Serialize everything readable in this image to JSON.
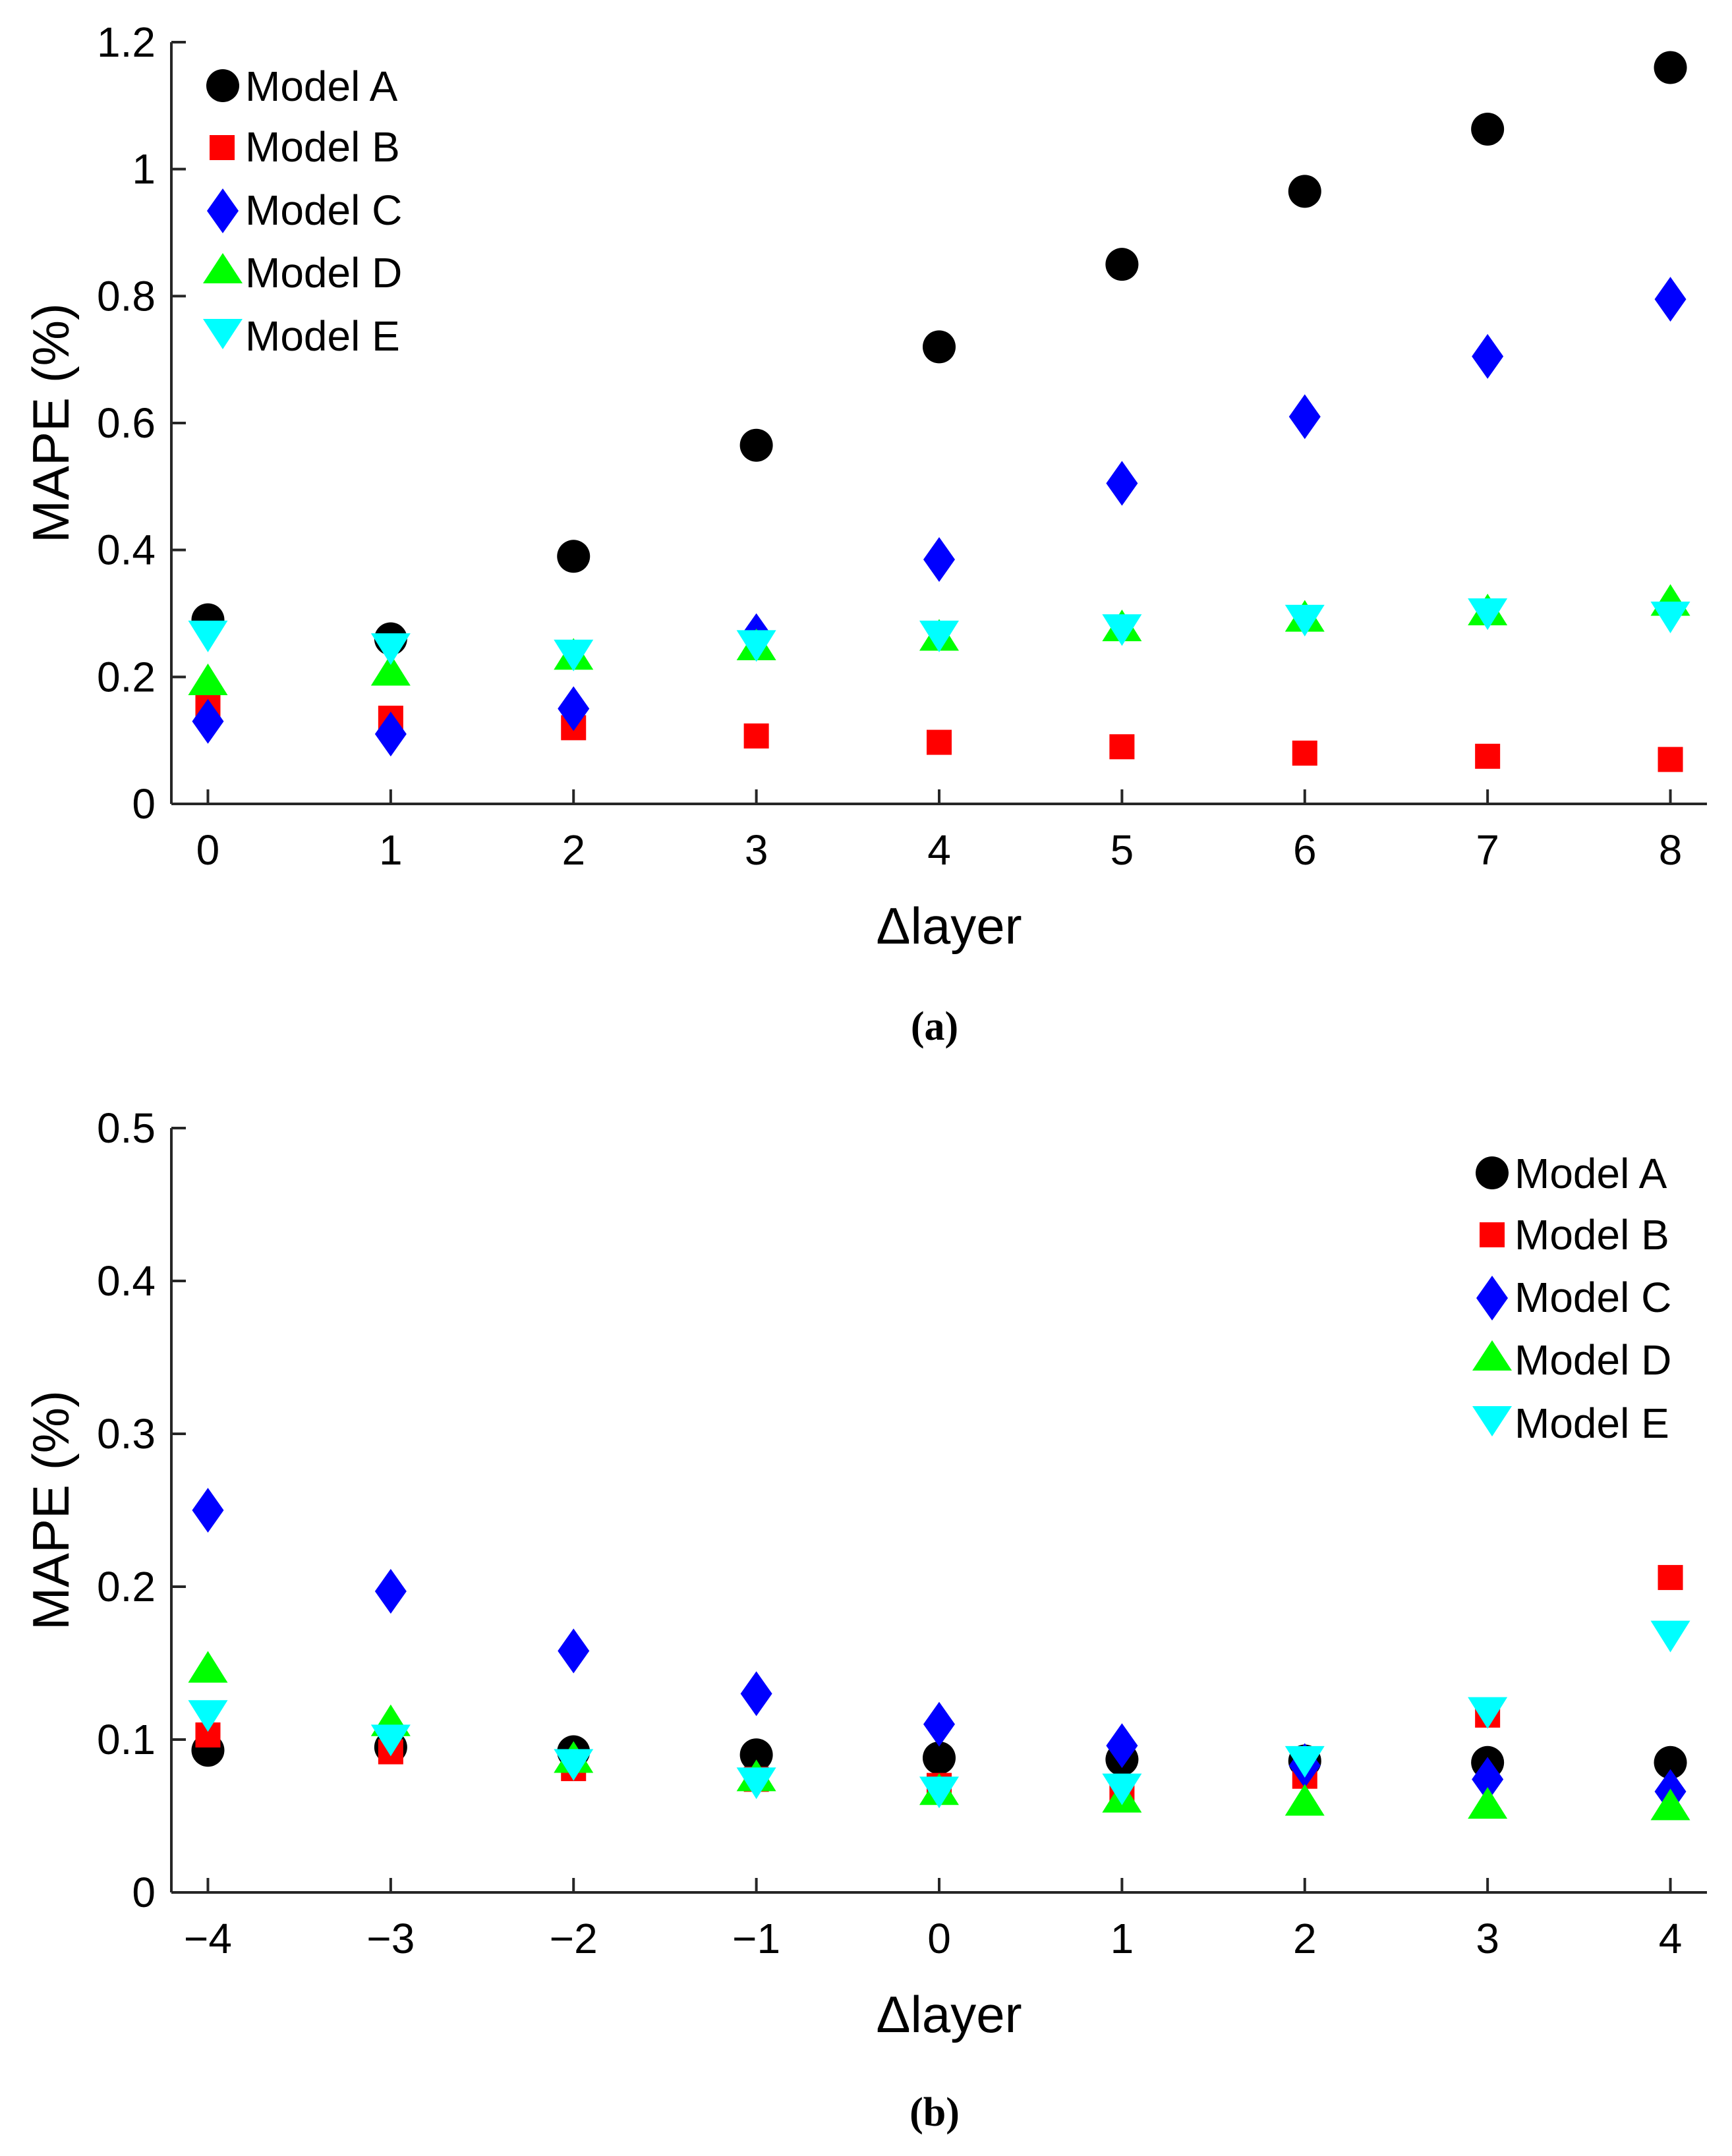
{
  "chart_data": [
    {
      "type": "scatter",
      "panel": "a",
      "caption": "(a)",
      "xlabel": "Δlayer",
      "ylabel": "MAPE (%)",
      "x": [
        0,
        1,
        2,
        3,
        4,
        5,
        6,
        7,
        8
      ],
      "x_tick_labels": [
        "0",
        "1",
        "2",
        "3",
        "4",
        "5",
        "6",
        "7",
        "8"
      ],
      "xlim": [
        -0.2,
        8.2
      ],
      "ylim": [
        0,
        1.2
      ],
      "y_ticks": [
        0,
        0.2,
        0.4,
        0.6,
        0.8,
        1,
        1.2
      ],
      "y_tick_labels": [
        "0",
        "0.2",
        "0.4",
        "0.6",
        "0.8",
        "1",
        "1.2"
      ],
      "legend_position": "top-left",
      "series": [
        {
          "name": "Model A",
          "marker": "circle",
          "color": "#000000",
          "values": [
            0.29,
            0.26,
            0.39,
            0.565,
            0.72,
            0.85,
            0.965,
            1.063,
            1.16
          ]
        },
        {
          "name": "Model B",
          "marker": "square",
          "color": "#ff0000",
          "values": [
            0.155,
            0.135,
            0.12,
            0.107,
            0.097,
            0.09,
            0.08,
            0.075,
            0.07
          ]
        },
        {
          "name": "Model C",
          "marker": "diamond",
          "color": "#0000ff",
          "values": [
            0.13,
            0.11,
            0.15,
            0.265,
            0.385,
            0.505,
            0.61,
            0.705,
            0.795
          ]
        },
        {
          "name": "Model D",
          "marker": "triangle-up",
          "color": "#00ff00",
          "values": [
            0.19,
            0.205,
            0.23,
            0.245,
            0.26,
            0.275,
            0.29,
            0.3,
            0.315
          ]
        },
        {
          "name": "Model E",
          "marker": "triangle-down",
          "color": "#00ffff",
          "values": [
            0.27,
            0.25,
            0.24,
            0.255,
            0.27,
            0.28,
            0.295,
            0.305,
            0.3
          ]
        }
      ]
    },
    {
      "type": "scatter",
      "panel": "b",
      "caption": "(b)",
      "xlabel": "Δlayer",
      "ylabel": "MAPE (%)",
      "x": [
        -4,
        -3,
        -2,
        -1,
        0,
        1,
        2,
        3,
        4
      ],
      "x_tick_labels": [
        "−4",
        "−3",
        "−2",
        "−1",
        "0",
        "1",
        "2",
        "3",
        "4"
      ],
      "xlim": [
        -4.2,
        4.2
      ],
      "ylim": [
        0,
        0.5
      ],
      "y_ticks": [
        0,
        0.1,
        0.2,
        0.3,
        0.4,
        0.5
      ],
      "y_tick_labels": [
        "0",
        "0.1",
        "0.2",
        "0.3",
        "0.4",
        "0.5"
      ],
      "legend_position": "top-right",
      "series": [
        {
          "name": "Model A",
          "marker": "circle",
          "color": "#000000",
          "values": [
            0.093,
            0.095,
            0.092,
            0.09,
            0.088,
            0.087,
            0.086,
            0.085,
            0.085
          ]
        },
        {
          "name": "Model B",
          "marker": "square",
          "color": "#ff0000",
          "values": [
            0.103,
            0.092,
            0.081,
            0.074,
            0.07,
            0.067,
            0.076,
            0.116,
            0.206
          ]
        },
        {
          "name": "Model C",
          "marker": "diamond",
          "color": "#0000ff",
          "values": [
            0.25,
            0.197,
            0.158,
            0.13,
            0.11,
            0.096,
            0.083,
            0.074,
            0.066
          ]
        },
        {
          "name": "Model D",
          "marker": "triangle-up",
          "color": "#00ff00",
          "values": [
            0.145,
            0.11,
            0.086,
            0.074,
            0.065,
            0.06,
            0.058,
            0.056,
            0.055
          ]
        },
        {
          "name": "Model E",
          "marker": "triangle-down",
          "color": "#00ffff",
          "values": [
            0.118,
            0.102,
            0.086,
            0.074,
            0.068,
            0.07,
            0.088,
            0.12,
            0.17
          ]
        }
      ]
    }
  ]
}
